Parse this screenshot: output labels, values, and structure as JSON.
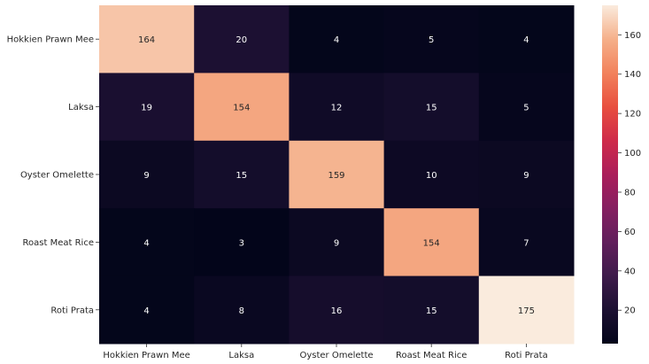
{
  "chart_data": {
    "type": "heatmap",
    "title": "",
    "xlabel": "",
    "ylabel": "",
    "row_labels": [
      "Hokkien Prawn Mee",
      "Laksa",
      "Oyster Omelette",
      "Roast Meat Rice",
      "Roti Prata"
    ],
    "col_labels": [
      "Hokkien Prawn Mee",
      "Laksa",
      "Oyster Omelette",
      "Roast Meat Rice",
      "Roti Prata"
    ],
    "values": [
      [
        164,
        20,
        4,
        5,
        4
      ],
      [
        19,
        154,
        12,
        15,
        5
      ],
      [
        9,
        15,
        159,
        10,
        9
      ],
      [
        4,
        3,
        9,
        154,
        7
      ],
      [
        4,
        8,
        16,
        15,
        175
      ]
    ],
    "colormap": "rocket",
    "colorbar": {
      "range": [
        3,
        175
      ],
      "ticks": [
        20,
        40,
        60,
        80,
        100,
        120,
        140,
        160
      ]
    },
    "grid": false,
    "legend": "colorbar-right"
  }
}
